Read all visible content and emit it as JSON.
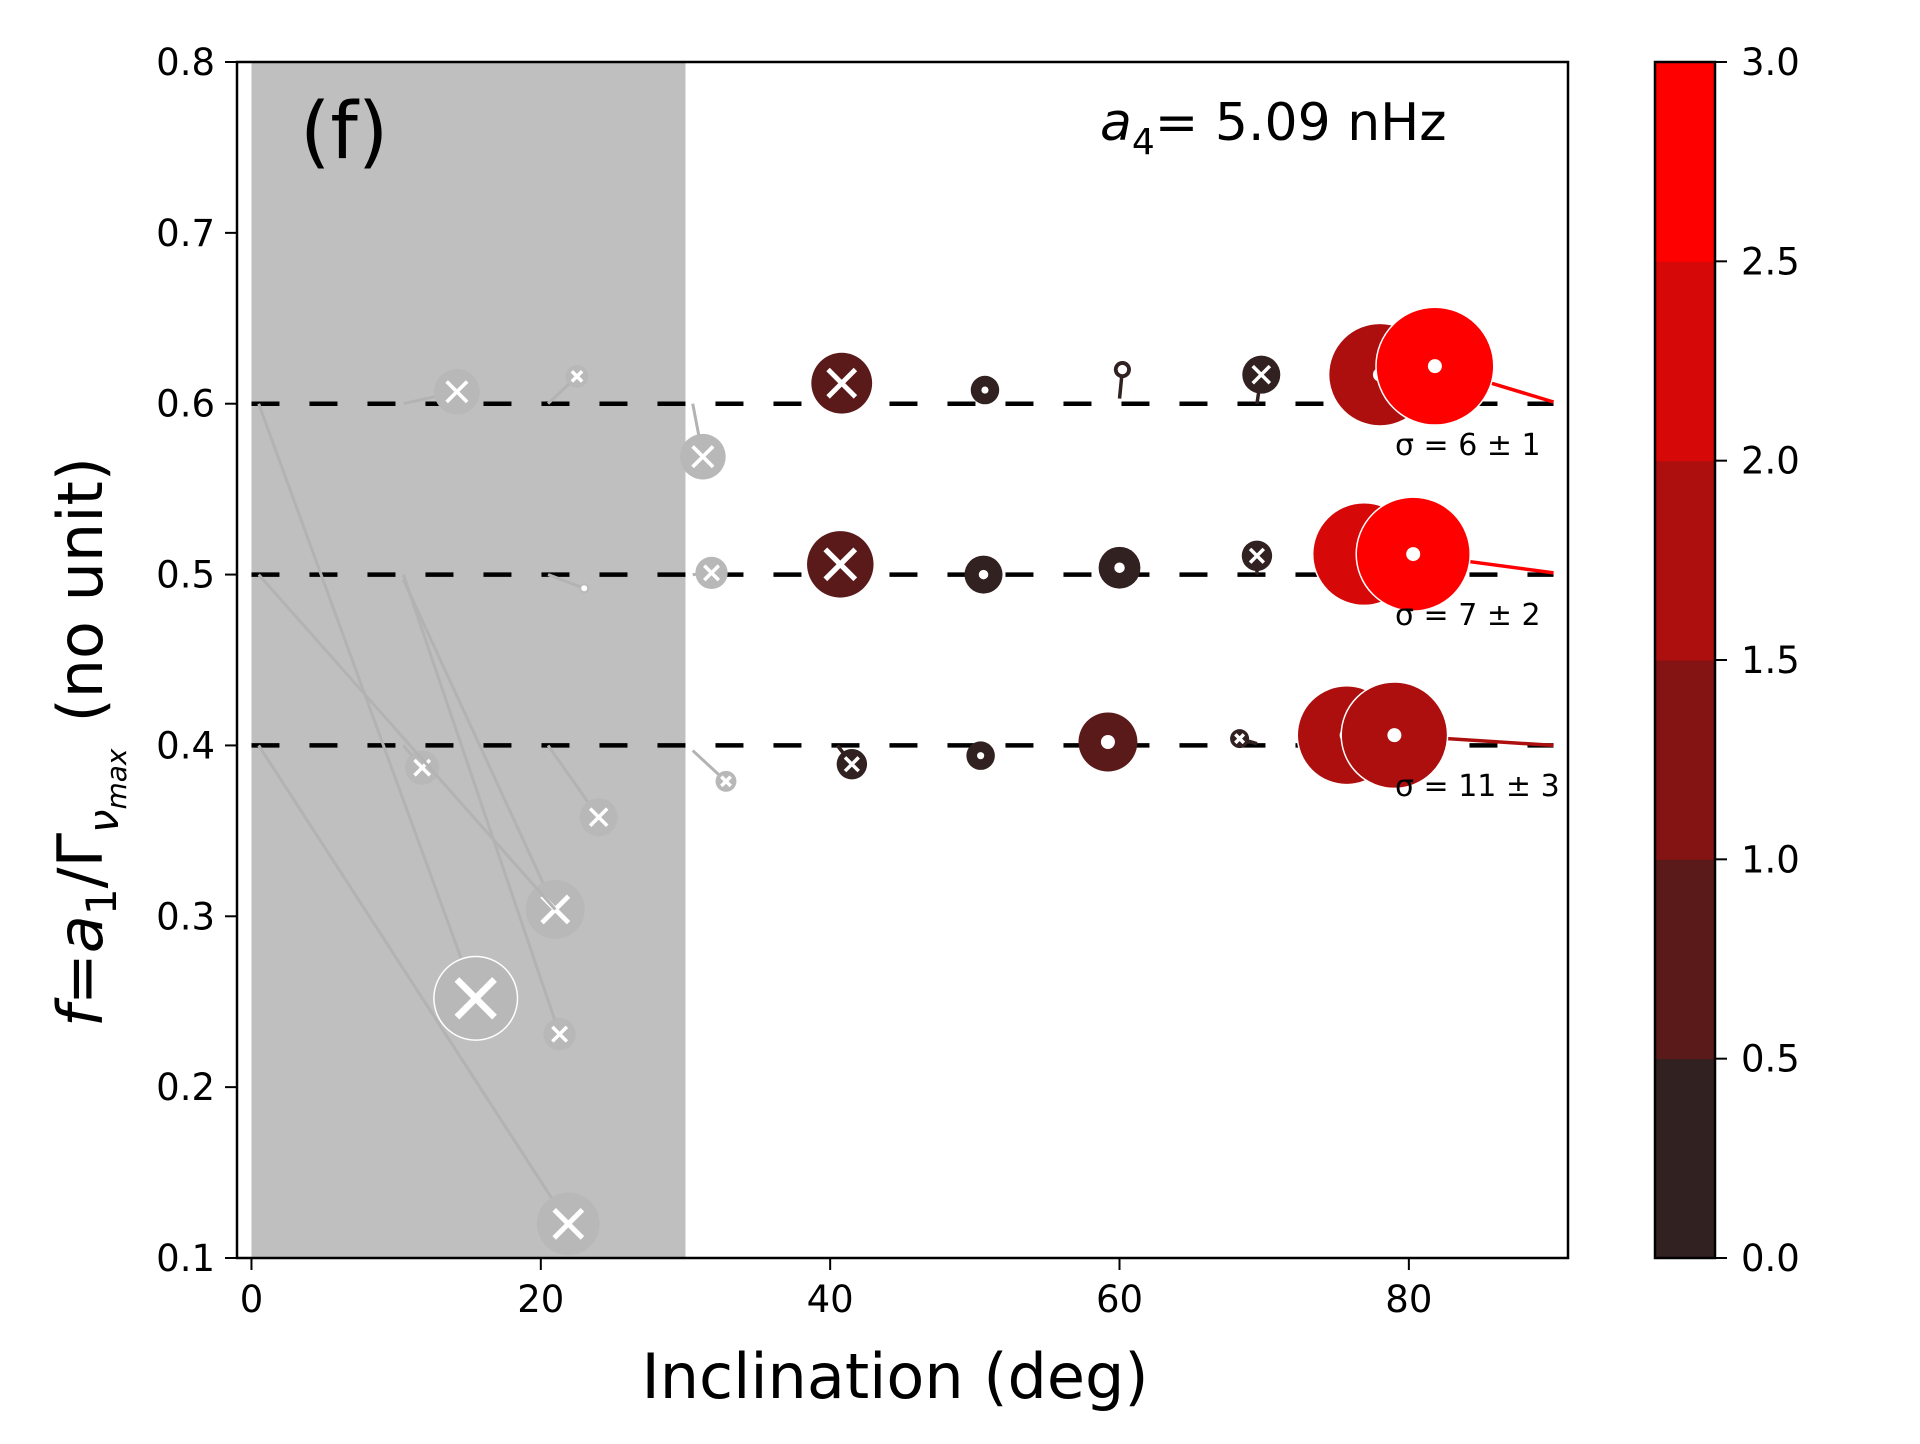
{
  "chart_data": {
    "type": "scatter",
    "panel_label": "(f)",
    "annotation": {
      "symbol": "a",
      "subscript": "4",
      "text": "= 5.09 nHz"
    },
    "xlabel": "Inclination (deg)",
    "ylabel": {
      "f": "f",
      "eq": "=",
      "a": "a",
      "a_sub": "1",
      "slash": "/Γ",
      "g_sub": "ν",
      "g_sub2": "max",
      "unit": "(no unit)"
    },
    "xlim": [
      -1,
      91
    ],
    "ylim": [
      0.1,
      0.8
    ],
    "xticks": [
      0,
      20,
      40,
      60,
      80
    ],
    "xtick_labels": [
      "0",
      "20",
      "40",
      "60",
      "80"
    ],
    "yticks": [
      0.1,
      0.2,
      0.3,
      0.4,
      0.5,
      0.6,
      0.7,
      0.8
    ],
    "ytick_labels": [
      "0.1",
      "0.2",
      "0.3",
      "0.4",
      "0.5",
      "0.6",
      "0.7",
      "0.8"
    ],
    "shaded_region": {
      "x": [
        0,
        30
      ],
      "color": "#bfbfbf"
    },
    "reference_lines": [
      {
        "y": 0.6,
        "x": [
          0,
          90
        ],
        "style": "dashed",
        "label": "σ = 6 ± 1"
      },
      {
        "y": 0.5,
        "x": [
          0,
          90
        ],
        "style": "dashed",
        "label": "σ = 7 ± 2"
      },
      {
        "y": 0.4,
        "x": [
          0,
          90
        ],
        "style": "dashed",
        "label": "σ = 11 ± 3"
      }
    ],
    "sigma_labels": [
      "σ = 6 ± 1",
      "σ = 7 ± 2",
      "σ = 11 ± 3"
    ],
    "colorbar": {
      "ticks": [
        0.0,
        0.5,
        1.0,
        1.5,
        2.0,
        2.5,
        3.0
      ],
      "tick_labels": [
        "0.0",
        "0.5",
        "1.0",
        "1.5",
        "2.0",
        "2.5",
        "3.0"
      ],
      "colors": [
        "#322121",
        "#5a1a1a",
        "#841414",
        "#ad0f0f",
        "#d60808",
        "#ff0000"
      ],
      "range": [
        0.0,
        3.0
      ]
    },
    "points": [
      {
        "x": 14.2,
        "y": 0.607,
        "tx": 10.5,
        "ty": 0.6,
        "size": 1.2,
        "value": 0,
        "marker": "x",
        "grey": true
      },
      {
        "x": 22.5,
        "y": 0.616,
        "tx": 20.5,
        "ty": 0.6,
        "size": 0.6,
        "value": 0,
        "marker": "x",
        "grey": true
      },
      {
        "x": 31.2,
        "y": 0.569,
        "tx": 30.5,
        "ty": 0.6,
        "size": 1.2,
        "value": 0,
        "marker": "x",
        "grey": true
      },
      {
        "x": 40.8,
        "y": 0.612,
        "tx": 40.5,
        "ty": 0.6,
        "size": 1.6,
        "value": 0.6,
        "marker": "x",
        "grey": false
      },
      {
        "x": 50.7,
        "y": 0.608,
        "tx": 50.5,
        "ty": 0.6,
        "size": 0.75,
        "value": 0.2,
        "marker": "dot",
        "grey": false
      },
      {
        "x": 60.2,
        "y": 0.62,
        "tx": 60.0,
        "ty": 0.603,
        "size": 0.45,
        "value": 0.2,
        "marker": "ring",
        "grey": false
      },
      {
        "x": 69.8,
        "y": 0.617,
        "tx": 69.5,
        "ty": 0.6,
        "size": 1.0,
        "value": 0.2,
        "marker": "x",
        "grey": false
      },
      {
        "x": 78.0,
        "y": 0.617,
        "tx": 80.5,
        "ty": 0.6,
        "size": 2.7,
        "value": 1.8,
        "marker": "dot",
        "grey": false
      },
      {
        "x": 81.8,
        "y": 0.622,
        "tx": 90.0,
        "ty": 0.601,
        "size": 3.1,
        "value": 2.9,
        "marker": "dot",
        "grey": false
      },
      {
        "x": 31.8,
        "y": 0.501,
        "tx": 30.5,
        "ty": 0.5,
        "size": 0.85,
        "value": 0,
        "marker": "x",
        "grey": true
      },
      {
        "x": 23.0,
        "y": 0.492,
        "tx": 20.5,
        "ty": 0.5,
        "size": 0.2,
        "value": 0,
        "marker": "dot",
        "grey": true
      },
      {
        "x": 40.7,
        "y": 0.506,
        "tx": 40.5,
        "ty": 0.5,
        "size": 1.75,
        "value": 0.6,
        "marker": "x",
        "grey": false
      },
      {
        "x": 50.6,
        "y": 0.5,
        "tx": 50.5,
        "ty": 0.5,
        "size": 1.0,
        "value": 0.2,
        "marker": "dot",
        "grey": false
      },
      {
        "x": 60.0,
        "y": 0.504,
        "tx": 60.0,
        "ty": 0.5,
        "size": 1.1,
        "value": 0.2,
        "marker": "dot",
        "grey": false
      },
      {
        "x": 69.5,
        "y": 0.511,
        "tx": 69.5,
        "ty": 0.5,
        "size": 0.8,
        "value": 0.2,
        "marker": "x",
        "grey": false
      },
      {
        "x": 76.9,
        "y": 0.512,
        "tx": 80.5,
        "ty": 0.5,
        "size": 2.7,
        "value": 2.0,
        "marker": "dot",
        "grey": false
      },
      {
        "x": 80.3,
        "y": 0.512,
        "tx": 90.0,
        "ty": 0.501,
        "size": 3.0,
        "value": 2.9,
        "marker": "dot",
        "grey": false
      },
      {
        "x": 11.8,
        "y": 0.387,
        "tx": 10.5,
        "ty": 0.4,
        "size": 0.9,
        "value": 0,
        "marker": "x",
        "grey": true
      },
      {
        "x": 24.0,
        "y": 0.358,
        "tx": 20.5,
        "ty": 0.4,
        "size": 1.0,
        "value": 0,
        "marker": "x",
        "grey": true
      },
      {
        "x": 32.8,
        "y": 0.379,
        "tx": 30.5,
        "ty": 0.397,
        "size": 0.55,
        "value": 0,
        "marker": "x",
        "grey": true
      },
      {
        "x": 41.5,
        "y": 0.389,
        "tx": 40.5,
        "ty": 0.4,
        "size": 0.8,
        "value": 0.2,
        "marker": "x",
        "grey": false
      },
      {
        "x": 50.4,
        "y": 0.394,
        "tx": 50.5,
        "ty": 0.4,
        "size": 0.75,
        "value": 0.2,
        "marker": "dot",
        "grey": false
      },
      {
        "x": 59.2,
        "y": 0.402,
        "tx": 60.0,
        "ty": 0.4,
        "size": 1.55,
        "value": 0.6,
        "marker": "dot",
        "grey": false
      },
      {
        "x": 68.3,
        "y": 0.404,
        "tx": 69.5,
        "ty": 0.401,
        "size": 0.5,
        "value": 0.2,
        "marker": "x",
        "grey": false
      },
      {
        "x": 75.7,
        "y": 0.406,
        "tx": 80.5,
        "ty": 0.4,
        "size": 2.6,
        "value": 1.7,
        "marker": "dot",
        "grey": false
      },
      {
        "x": 79.0,
        "y": 0.406,
        "tx": 90.0,
        "ty": 0.4,
        "size": 2.8,
        "value": 1.9,
        "marker": "dot",
        "grey": false
      },
      {
        "x": 21.0,
        "y": 0.304,
        "tx": 10.5,
        "ty": 0.497,
        "size": 1.55,
        "value": 0,
        "marker": "x",
        "grey": true
      },
      {
        "x": 21.3,
        "y": 0.231,
        "tx": 10.5,
        "ty": 0.5,
        "size": 0.85,
        "value": 0,
        "marker": "x",
        "grey": true
      },
      {
        "x": 15.5,
        "y": 0.252,
        "tx": 0.5,
        "ty": 0.6,
        "size": 2.2,
        "value": 0,
        "marker": "x",
        "grey": true
      },
      {
        "x": 21.9,
        "y": 0.12,
        "tx": 0.5,
        "ty": 0.4,
        "size": 1.65,
        "value": 0,
        "marker": "x",
        "grey": true
      },
      {
        "x": 21.0,
        "y": 0.304,
        "tx": 0.5,
        "ty": 0.5,
        "size": 0,
        "value": 0,
        "marker": "none",
        "grey": true
      }
    ]
  }
}
